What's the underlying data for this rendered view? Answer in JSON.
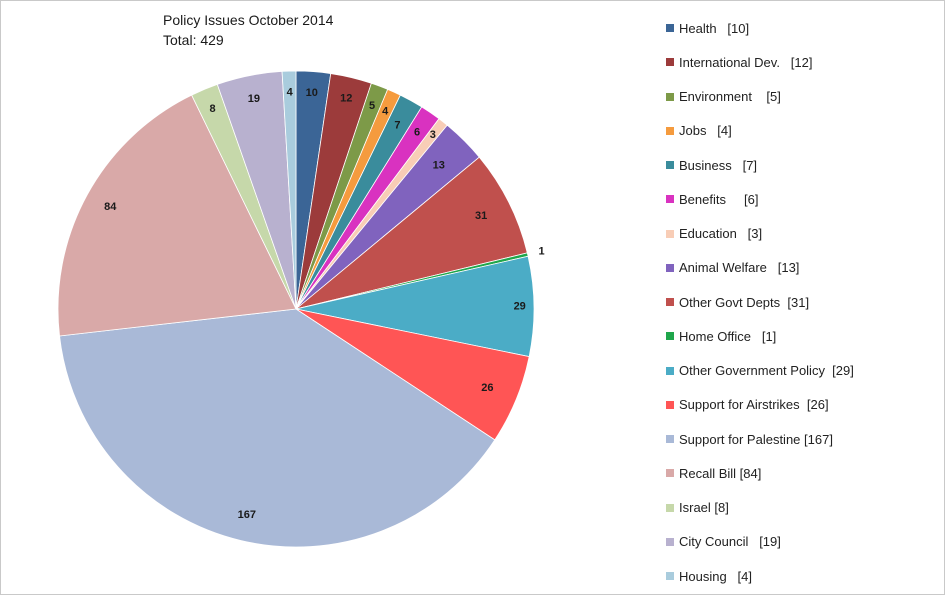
{
  "chart_data": {
    "type": "pie",
    "title": "Policy Issues October  2014",
    "subtitle": "Total:  429",
    "total": 429,
    "legend_position": "right",
    "slices": [
      {
        "name": "Health",
        "value": 10,
        "value_label": "10",
        "legend_label": "Health   [10]",
        "color": "#3B6596"
      },
      {
        "name": "International Dev.",
        "value": 12,
        "value_label": "12",
        "legend_label": "International Dev.   [12]",
        "color": "#9C3B3B"
      },
      {
        "name": "Environment",
        "value": 5,
        "value_label": "5",
        "legend_label": "Environment    [5]",
        "color": "#7D9A48"
      },
      {
        "name": "Jobs",
        "value": 4,
        "value_label": "4",
        "legend_label": "Jobs   [4]",
        "color": "#F59B3E"
      },
      {
        "name": "Business",
        "value": 7,
        "value_label": "7",
        "legend_label": "Business   [7]",
        "color": "#3A8C9C"
      },
      {
        "name": "Benefits",
        "value": 6,
        "value_label": "6",
        "legend_label": "Benefits     [6]",
        "color": "#D932C0"
      },
      {
        "name": "Education",
        "value": 3,
        "value_label": "3",
        "legend_label": "Education   [3]",
        "color": "#F8CDB6"
      },
      {
        "name": "Animal Welfare",
        "value": 13,
        "value_label": "13",
        "legend_label": "Animal Welfare   [13]",
        "color": "#8063BE"
      },
      {
        "name": "Other Govt Depts",
        "value": 31,
        "value_label": "31",
        "legend_label": "Other Govt Depts  [31]",
        "color": "#C0504D"
      },
      {
        "name": "Home Office",
        "value": 1,
        "value_label": "1",
        "legend_label": "Home Office   [1]",
        "color": "#1FA64B"
      },
      {
        "name": "Other Government Policy",
        "value": 29,
        "value_label": "29",
        "legend_label": "Other Government Policy  [29]",
        "color": "#4BACC6"
      },
      {
        "name": "Support for Airstrikes",
        "value": 26,
        "value_label": "26",
        "legend_label": "Support for Airstrikes  [26]",
        "color": "#FF5555"
      },
      {
        "name": "Support for Palestine",
        "value": 167,
        "value_label": "167",
        "legend_label": "Support for Palestine [167]",
        "color": "#A9B9D7"
      },
      {
        "name": "Recall Bill",
        "value": 84,
        "value_label": "84",
        "legend_label": "Recall Bill [84]",
        "color": "#D9A9A8"
      },
      {
        "name": "Israel",
        "value": 8,
        "value_label": "8",
        "legend_label": "Israel [8]",
        "color": "#C6D8AA"
      },
      {
        "name": "City Council",
        "value": 19,
        "value_label": "19",
        "legend_label": "City Council   [19]",
        "color": "#B8B1CF"
      },
      {
        "name": "Housing",
        "value": 4,
        "value_label": "4",
        "legend_label": "Housing   [4]",
        "color": "#A9CCDD"
      }
    ]
  }
}
